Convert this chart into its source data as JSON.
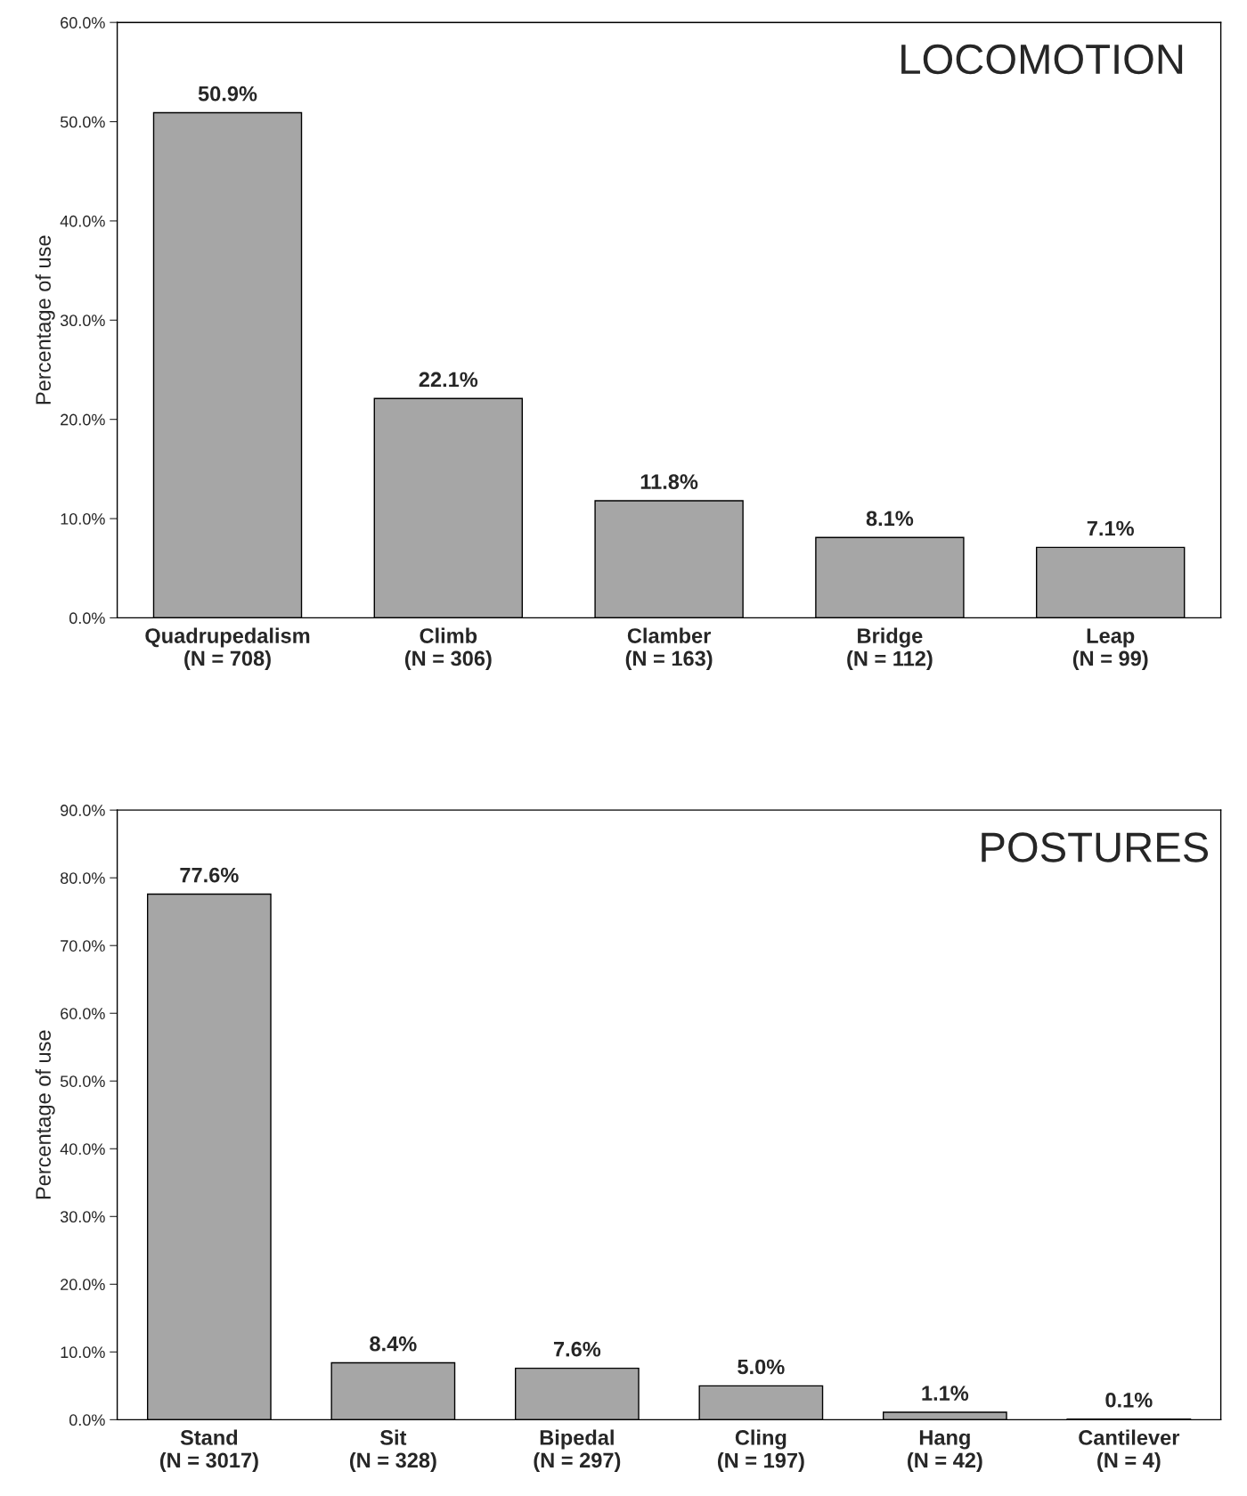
{
  "chart_data": [
    {
      "type": "bar",
      "title": "LOCOMOTION",
      "ylabel": "Percentage of use",
      "categories": [
        "Quadrupedalism\n(N = 708)",
        "Climb\n(N = 306)",
        "Clamber\n(N = 163)",
        "Bridge\n(N = 112)",
        "Leap\n(N = 99)"
      ],
      "values": [
        50.9,
        22.1,
        11.8,
        8.1,
        7.1
      ],
      "value_labels": [
        "50.9%",
        "22.1%",
        "11.8%",
        "8.1%",
        "7.1%"
      ],
      "color": "#a6a6a6",
      "ylim": [
        0,
        60
      ],
      "yticks": [
        {
          "value": 0,
          "label": "0.0%"
        },
        {
          "value": 10,
          "label": "10.0%"
        },
        {
          "value": 20,
          "label": "20.0%"
        },
        {
          "value": 30,
          "label": "30.0%"
        },
        {
          "value": 40,
          "label": "40.0%"
        },
        {
          "value": 50,
          "label": "50.0%"
        },
        {
          "value": 60,
          "label": "60.0%"
        }
      ],
      "grid": false
    },
    {
      "type": "bar",
      "title": "POSTURES",
      "ylabel": "Percentage of use",
      "categories": [
        "Stand\n(N = 3017)",
        "Sit\n(N = 328)",
        "Bipedal\n(N = 297)",
        "Cling\n(N = 197)",
        "Hang\n(N = 42)",
        "Cantilever\n(N = 4)"
      ],
      "values": [
        77.6,
        8.4,
        7.6,
        5.0,
        1.1,
        0.1
      ],
      "value_labels": [
        "77.6%",
        "8.4%",
        "7.6%",
        "5.0%",
        "1.1%",
        "0.1%"
      ],
      "color": "#a6a6a6",
      "ylim": [
        0,
        90
      ],
      "yticks": [
        {
          "value": 0,
          "label": "0.0%"
        },
        {
          "value": 10,
          "label": "10.0%"
        },
        {
          "value": 20,
          "label": "20.0%"
        },
        {
          "value": 30,
          "label": "30.0%"
        },
        {
          "value": 40,
          "label": "40.0%"
        },
        {
          "value": 50,
          "label": "50.0%"
        },
        {
          "value": 60,
          "label": "60.0%"
        },
        {
          "value": 70,
          "label": "70.0%"
        },
        {
          "value": 80,
          "label": "80.0%"
        },
        {
          "value": 90,
          "label": "90.0%"
        }
      ],
      "grid": false
    }
  ]
}
